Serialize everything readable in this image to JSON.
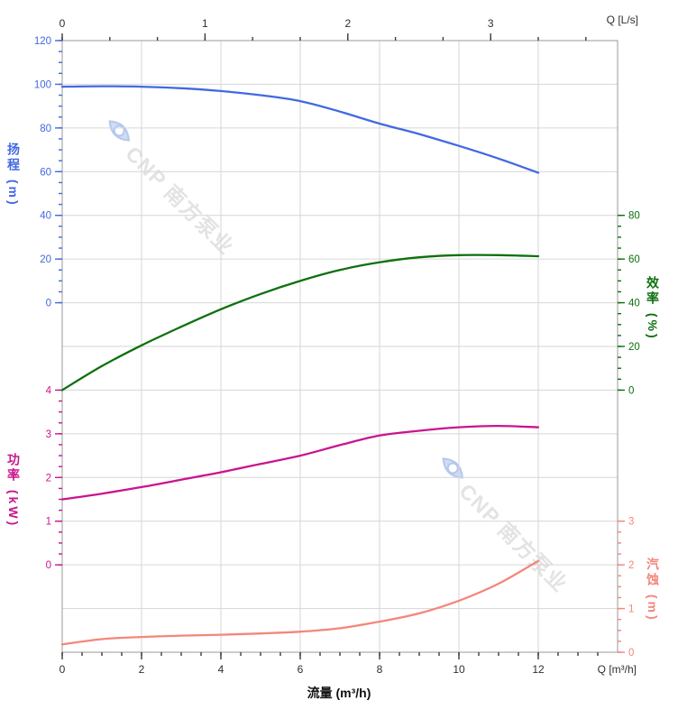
{
  "watermark": {
    "text": "CNP 南方泵业"
  },
  "chart_data": {
    "type": "line",
    "title": "",
    "x_axis": {
      "bottom_title": "流量 (m³/h)",
      "bottom_unit": "Q [m³/h]",
      "top_unit": "Q [L/s]",
      "bottom_ticks": [
        0,
        2,
        4,
        6,
        8,
        10,
        12
      ],
      "bottom_minor_step": 0.5,
      "top_ticks": [
        0,
        1,
        2,
        3
      ],
      "top_minor_step": 0.3333,
      "range_m3h": [
        0,
        14
      ],
      "grid": true
    },
    "y_axes": {
      "head": {
        "title": "扬程 (m)",
        "side": "left",
        "color": "#4169e1",
        "ticks": [
          120,
          100,
          80,
          60,
          40,
          20,
          0
        ],
        "minor_step": 5,
        "range": [
          0,
          120
        ]
      },
      "power": {
        "title": "功率 (kW)",
        "side": "left",
        "color": "#c9158e",
        "ticks": [
          4,
          3,
          2,
          1,
          0
        ],
        "minor_step": 0.25,
        "range": [
          0,
          4
        ]
      },
      "efficiency": {
        "title": "效率 (%)",
        "side": "right",
        "color": "#0d700d",
        "ticks": [
          80,
          60,
          40,
          20,
          0
        ],
        "minor_step": 5,
        "range": [
          0,
          80
        ]
      },
      "npsh": {
        "title": "汽蚀 (m)",
        "side": "right",
        "color": "#f4867a",
        "ticks": [
          3,
          2,
          1,
          0
        ],
        "minor_step": 0.25,
        "range": [
          0,
          3
        ]
      }
    },
    "q_m3h": [
      0,
      1,
      2,
      3,
      4,
      5,
      6,
      7,
      8,
      9,
      10,
      11,
      12
    ],
    "series": [
      {
        "name": "head",
        "axis": "head",
        "color": "#4169e1",
        "values": [
          98.9,
          99.1,
          98.9,
          98.2,
          96.9,
          95.0,
          92.3,
          87.5,
          82.0,
          77.2,
          71.8,
          66.0,
          59.5
        ]
      },
      {
        "name": "efficiency",
        "axis": "efficiency",
        "color": "#0d700d",
        "values": [
          0,
          11.0,
          20.5,
          29.0,
          37.0,
          44.0,
          50.0,
          55.0,
          58.5,
          60.8,
          61.8,
          61.8,
          61.3
        ]
      },
      {
        "name": "power",
        "axis": "power",
        "color": "#c9158e",
        "values": [
          1.5,
          1.63,
          1.78,
          1.95,
          2.12,
          2.31,
          2.5,
          2.74,
          2.96,
          3.07,
          3.15,
          3.18,
          3.15
        ]
      },
      {
        "name": "npsh",
        "axis": "npsh",
        "color": "#f4867a",
        "values": [
          0.18,
          0.3,
          0.35,
          0.38,
          0.4,
          0.43,
          0.47,
          0.55,
          0.7,
          0.89,
          1.18,
          1.57,
          2.09
        ]
      }
    ],
    "legend": false
  }
}
